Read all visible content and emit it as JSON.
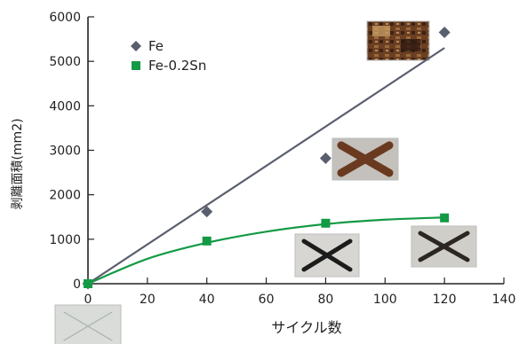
{
  "chart_data": {
    "type": "scatter",
    "title": "",
    "xlabel": "サイクル数",
    "ylabel": "剥離面積(mm2)",
    "xlim": [
      0,
      140
    ],
    "ylim": [
      0,
      6000
    ],
    "xticks": [
      0,
      20,
      40,
      60,
      80,
      100,
      120,
      140
    ],
    "yticks": [
      0,
      1000,
      2000,
      3000,
      4000,
      5000,
      6000
    ],
    "grid": false,
    "legend_position": "top-left",
    "series": [
      {
        "name": "Fe",
        "marker": "diamond",
        "color": "#5a5f6e",
        "x": [
          0,
          40,
          80,
          120
        ],
        "y": [
          0,
          1620,
          2820,
          5650
        ],
        "fit": {
          "kind": "linear",
          "color": "#5a5f6e",
          "x": [
            0,
            120
          ],
          "y": [
            0,
            5300
          ]
        }
      },
      {
        "name": "Fe-0.2Sn",
        "marker": "square",
        "color": "#139a45",
        "x": [
          0,
          40,
          80,
          120
        ],
        "y": [
          0,
          960,
          1360,
          1480
        ],
        "fit": {
          "kind": "curve",
          "color": "#139a45",
          "x": [
            0,
            20,
            40,
            60,
            80,
            100,
            120
          ],
          "y": [
            0,
            560,
            920,
            1170,
            1340,
            1440,
            1490
          ]
        }
      }
    ],
    "sample_photos": [
      {
        "cycles": 0,
        "sample": "Fe-0.2Sn",
        "appearance": "faint X scribe"
      },
      {
        "cycles": 80,
        "sample": "Fe-0.2Sn",
        "appearance": "dark X scribe"
      },
      {
        "cycles": 80,
        "sample": "Fe",
        "appearance": "rusted X scribe"
      },
      {
        "cycles": 120,
        "sample": "Fe-0.2Sn",
        "appearance": "dark X scribe"
      },
      {
        "cycles": 120,
        "sample": "Fe",
        "appearance": "heavily corroded"
      }
    ]
  }
}
